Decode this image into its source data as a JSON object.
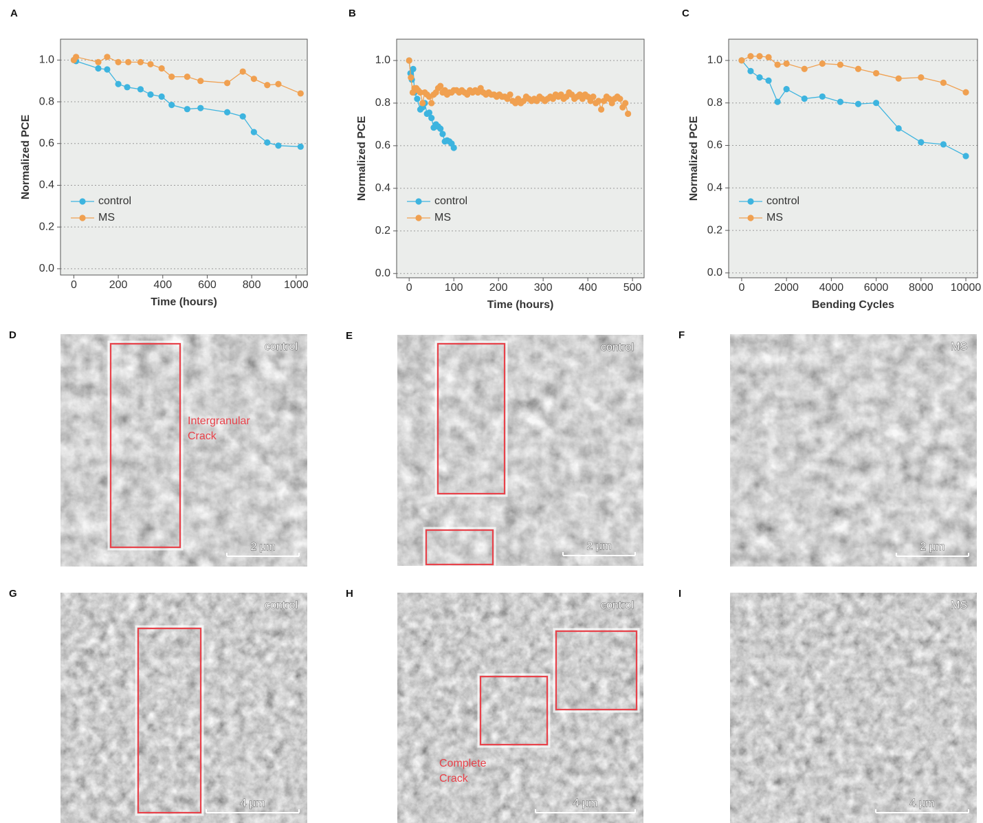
{
  "chart_data": [
    {
      "panel": "A",
      "type": "line",
      "xlabel": "Time (hours)",
      "ylabel": "Normalized PCE",
      "xlim": [
        -60,
        1050
      ],
      "ylim": [
        -0.03,
        1.1
      ],
      "xticks": [
        0,
        200,
        400,
        600,
        800,
        1000
      ],
      "yticks": [
        {
          "value": 0,
          "label": "0.0"
        },
        0.2,
        0.4,
        0.6,
        0.8,
        {
          "value": 1,
          "label": "1.0"
        }
      ],
      "grid": true,
      "legend": "center left",
      "series": [
        {
          "name": "control",
          "color": "#3db4df",
          "x": [
            0,
            10,
            110,
            150,
            200,
            240,
            300,
            345,
            395,
            440,
            510,
            570,
            690,
            760,
            810,
            870,
            920,
            1020
          ],
          "values": [
            1.0,
            0.995,
            0.96,
            0.955,
            0.885,
            0.87,
            0.86,
            0.835,
            0.825,
            0.785,
            0.765,
            0.77,
            0.75,
            0.73,
            0.655,
            0.605,
            0.59,
            0.585
          ]
        },
        {
          "name": "MS",
          "color": "#f0a050",
          "x": [
            0,
            10,
            110,
            150,
            200,
            245,
            300,
            345,
            395,
            440,
            510,
            570,
            690,
            760,
            810,
            870,
            920,
            1020
          ],
          "values": [
            1.0,
            1.015,
            0.99,
            1.015,
            0.99,
            0.99,
            0.99,
            0.98,
            0.96,
            0.92,
            0.92,
            0.9,
            0.89,
            0.945,
            0.91,
            0.88,
            0.885,
            0.84
          ]
        }
      ]
    },
    {
      "panel": "B",
      "type": "line",
      "xlabel": "Time (hours)",
      "ylabel": "Normalized PCE",
      "xlim": [
        -28,
        526
      ],
      "ylim": [
        -0.02,
        1.1
      ],
      "xticks": [
        0,
        100,
        200,
        300,
        400,
        500
      ],
      "yticks": [
        {
          "value": 0,
          "label": "0.0"
        },
        0.2,
        0.4,
        0.6,
        0.8,
        {
          "value": 1,
          "label": "1.0"
        }
      ],
      "grid": true,
      "legend": "center left",
      "series": [
        {
          "name": "control",
          "color": "#3db4df",
          "x": [
            0,
            3,
            6,
            9,
            12,
            18,
            25,
            30,
            35,
            40,
            45,
            50,
            55,
            60,
            65,
            70,
            75,
            80,
            85,
            90,
            95,
            100
          ],
          "values": [
            1.0,
            0.94,
            0.91,
            0.96,
            0.85,
            0.82,
            0.77,
            0.78,
            0.8,
            0.75,
            0.755,
            0.73,
            0.685,
            0.7,
            0.69,
            0.68,
            0.655,
            0.62,
            0.625,
            0.62,
            0.61,
            0.59
          ]
        },
        {
          "name": "MS",
          "color": "#f0a050",
          "x": [
            0,
            4,
            8,
            12,
            16,
            20,
            25,
            30,
            35,
            40,
            45,
            50,
            55,
            60,
            65,
            70,
            75,
            80,
            85,
            90,
            95,
            100,
            106,
            112,
            118,
            124,
            130,
            136,
            142,
            148,
            154,
            160,
            166,
            172,
            178,
            184,
            190,
            196,
            202,
            208,
            214,
            220,
            226,
            232,
            238,
            244,
            250,
            256,
            262,
            268,
            274,
            280,
            286,
            292,
            298,
            304,
            310,
            316,
            322,
            328,
            334,
            340,
            346,
            352,
            358,
            364,
            370,
            376,
            382,
            388,
            394,
            400,
            406,
            412,
            418,
            424,
            430,
            436,
            442,
            448,
            454,
            460,
            466,
            472,
            478,
            484,
            490
          ],
          "values": [
            1.0,
            0.92,
            0.85,
            0.87,
            0.87,
            0.86,
            0.85,
            0.8,
            0.85,
            0.84,
            0.83,
            0.8,
            0.84,
            0.85,
            0.87,
            0.88,
            0.85,
            0.86,
            0.84,
            0.85,
            0.85,
            0.86,
            0.86,
            0.85,
            0.86,
            0.85,
            0.84,
            0.86,
            0.85,
            0.86,
            0.85,
            0.87,
            0.85,
            0.84,
            0.85,
            0.84,
            0.84,
            0.83,
            0.84,
            0.83,
            0.83,
            0.82,
            0.84,
            0.81,
            0.8,
            0.82,
            0.8,
            0.81,
            0.83,
            0.82,
            0.81,
            0.82,
            0.81,
            0.83,
            0.82,
            0.81,
            0.82,
            0.83,
            0.82,
            0.84,
            0.83,
            0.84,
            0.82,
            0.83,
            0.85,
            0.84,
            0.82,
            0.83,
            0.84,
            0.82,
            0.84,
            0.83,
            0.81,
            0.83,
            0.8,
            0.81,
            0.77,
            0.81,
            0.83,
            0.82,
            0.8,
            0.82,
            0.83,
            0.82,
            0.78,
            0.8,
            0.75
          ]
        }
      ]
    },
    {
      "panel": "C",
      "type": "line",
      "xlabel": "Bending Cycles",
      "ylabel": "Normalized PCE",
      "xlim": [
        -580,
        10520
      ],
      "ylim": [
        -0.023,
        1.1
      ],
      "xticks": [
        0,
        2000,
        4000,
        6000,
        8000,
        10000
      ],
      "yticks": [
        {
          "value": 0,
          "label": "0.0"
        },
        0.2,
        0.4,
        0.6,
        0.8,
        {
          "value": 1,
          "label": "1.0"
        }
      ],
      "grid": true,
      "legend": "center left",
      "series": [
        {
          "name": "control",
          "color": "#3db4df",
          "x": [
            0,
            400,
            800,
            1200,
            1600,
            2000,
            2800,
            3600,
            4400,
            5200,
            6000,
            7000,
            8000,
            9000,
            10000
          ],
          "values": [
            1.0,
            0.95,
            0.92,
            0.905,
            0.805,
            0.865,
            0.82,
            0.83,
            0.805,
            0.795,
            0.8,
            0.68,
            0.615,
            0.605,
            0.55
          ]
        },
        {
          "name": "MS",
          "color": "#f0a050",
          "x": [
            0,
            400,
            800,
            1200,
            1600,
            2000,
            2800,
            3600,
            4400,
            5200,
            6000,
            7000,
            8000,
            9000,
            10000
          ],
          "values": [
            1.0,
            1.02,
            1.02,
            1.015,
            0.98,
            0.985,
            0.96,
            0.985,
            0.98,
            0.96,
            0.94,
            0.915,
            0.92,
            0.895,
            0.85
          ]
        }
      ]
    }
  ],
  "images": [
    {
      "panel": "D",
      "label": "control",
      "scale_bar": "2 μm",
      "annotation": [
        "Intergranular",
        "Crack"
      ]
    },
    {
      "panel": "E",
      "label": "control",
      "scale_bar": "2 μm"
    },
    {
      "panel": "F",
      "label": "MS",
      "scale_bar": "2 μm"
    },
    {
      "panel": "G",
      "label": "control",
      "scale_bar": "4 μm"
    },
    {
      "panel": "H",
      "label": "control",
      "scale_bar": "4 μm",
      "annotation": [
        "Complete",
        "Crack"
      ]
    },
    {
      "panel": "I",
      "label": "MS",
      "scale_bar": "4 μm"
    }
  ]
}
